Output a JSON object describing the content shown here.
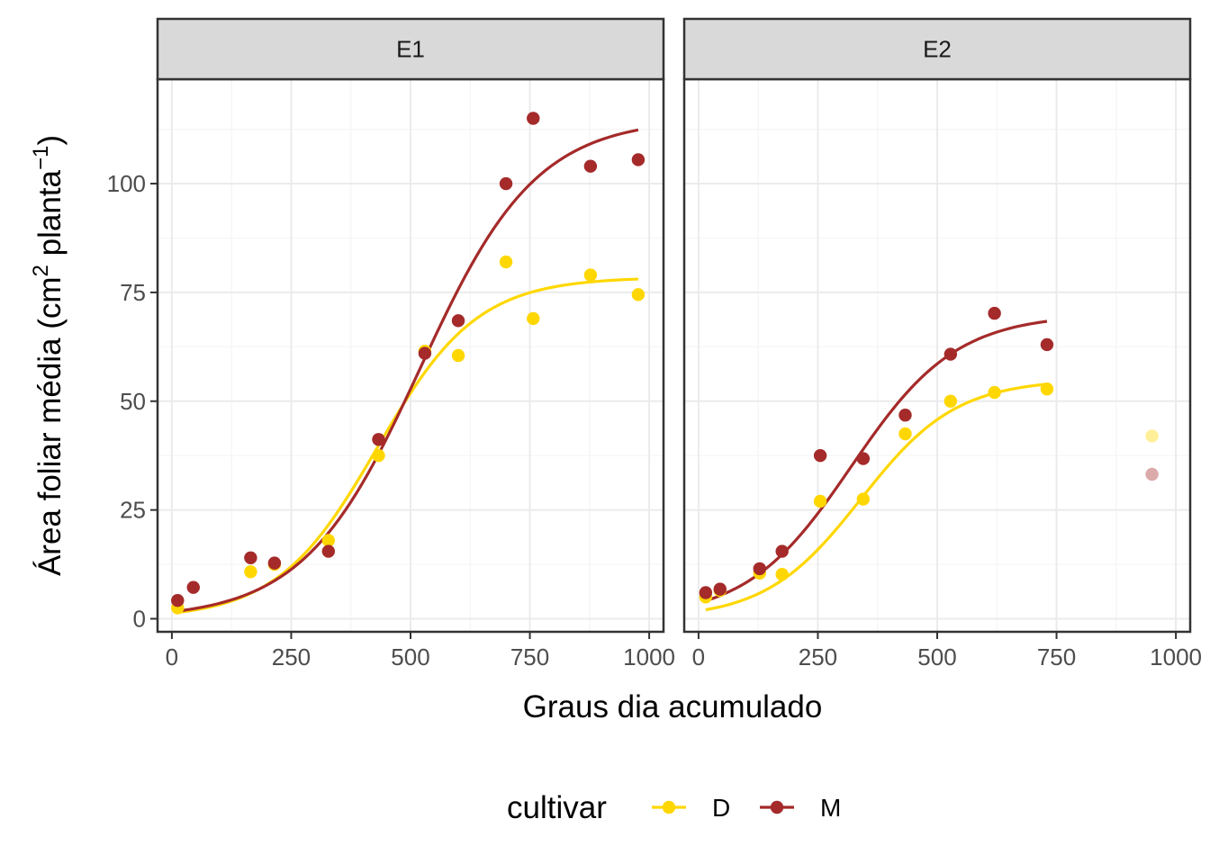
{
  "colors": {
    "D": "#ffd700",
    "M": "#a52a2a",
    "grid_major": "#ebebeb",
    "grid_minor": "#f5f5f5",
    "strip_fill": "#d9d9d9",
    "panel_border": "#333333"
  },
  "chart_data": {
    "type": "scatter",
    "xlabel": "Graus dia acumulado",
    "ylabel_parts": {
      "before": "Área foliar média (cm",
      "sup1": "2",
      "middle": " planta",
      "sup2": "−1",
      "after": ")"
    },
    "xlim": [
      -30,
      1030
    ],
    "ylim": [
      -3,
      124
    ],
    "x_ticks": [
      0,
      250,
      500,
      750,
      1000
    ],
    "y_ticks": [
      0,
      25,
      50,
      75,
      100
    ],
    "x_tick_labels": [
      "0",
      "250",
      "500",
      "750",
      "1000"
    ],
    "y_tick_labels": [
      "0",
      "25",
      "50",
      "75",
      "100"
    ],
    "grid": true,
    "legend": {
      "title": "cultivar",
      "position": "bottom",
      "entries": [
        "D",
        "M"
      ]
    },
    "facets": [
      {
        "label": "E1",
        "series": [
          {
            "name": "D",
            "points": [
              [
                12,
                2.5
              ],
              [
                165,
                10.8
              ],
              [
                215,
                12.5
              ],
              [
                328,
                18
              ],
              [
                433,
                37.5
              ],
              [
                530,
                61.5
              ],
              [
                600,
                60.5
              ],
              [
                700,
                82
              ],
              [
                757,
                69
              ],
              [
                877,
                79
              ],
              [
                977,
                74.5
              ]
            ],
            "curve": {
              "asym": 78.5,
              "mid": 430,
              "scale": 105
            }
          },
          {
            "name": "M",
            "points": [
              [
                12,
                4.2
              ],
              [
                45,
                7.2
              ],
              [
                165,
                14
              ],
              [
                215,
                12.8
              ],
              [
                328,
                15.5
              ],
              [
                433,
                41.2
              ],
              [
                530,
                61
              ],
              [
                600,
                68.5
              ],
              [
                700,
                100
              ],
              [
                757,
                115
              ],
              [
                877,
                104
              ],
              [
                977,
                105.5
              ]
            ],
            "curve": {
              "asym": 115,
              "mid": 520,
              "scale": 122
            }
          }
        ]
      },
      {
        "label": "E2",
        "series": [
          {
            "name": "D",
            "points": [
              [
                15,
                5
              ],
              [
                45,
                6.5
              ],
              [
                128,
                10.5
              ],
              [
                175,
                10.2
              ],
              [
                255,
                27
              ],
              [
                345,
                27.5
              ],
              [
                433,
                42.5
              ],
              [
                528,
                50
              ],
              [
                620,
                52
              ],
              [
                730,
                52.8
              ]
            ],
            "faded_points": [
              [
                950,
                42
              ]
            ],
            "curve": {
              "asym": 55,
              "mid": 340,
              "scale": 100
            }
          },
          {
            "name": "M",
            "points": [
              [
                15,
                6
              ],
              [
                45,
                6.8
              ],
              [
                128,
                11.5
              ],
              [
                175,
                15.5
              ],
              [
                255,
                37.5
              ],
              [
                345,
                36.8
              ],
              [
                433,
                46.8
              ],
              [
                528,
                60.8
              ],
              [
                620,
                70.2
              ],
              [
                730,
                63
              ]
            ],
            "faded_points": [
              [
                950,
                33.2
              ]
            ],
            "curve": {
              "asym": 70,
              "mid": 320,
              "scale": 110
            }
          }
        ]
      }
    ]
  }
}
